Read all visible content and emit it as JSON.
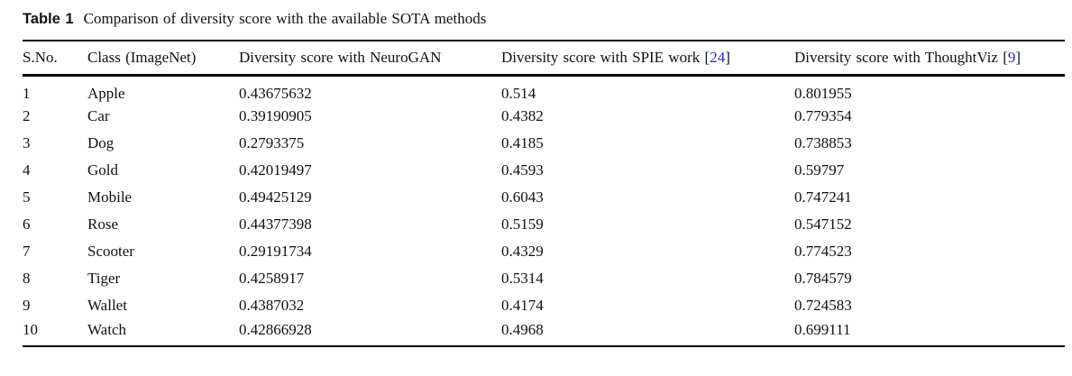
{
  "table": {
    "label": "Table 1",
    "caption": "Comparison of diversity score with the available SOTA methods",
    "columns": [
      {
        "label": "S.No."
      },
      {
        "label": "Class (ImageNet)"
      },
      {
        "label": "Diversity score with NeuroGAN"
      },
      {
        "label": "Diversity score with SPIE work",
        "cite_open": "[",
        "citation": "24",
        "cite_close": "]"
      },
      {
        "label": "Diversity score with ThoughtViz",
        "cite_open": "[",
        "citation": "9",
        "cite_close": "]"
      }
    ],
    "rows": [
      [
        "1",
        "Apple",
        "0.43675632",
        "0.514",
        "0.801955"
      ],
      [
        "2",
        "Car",
        "0.39190905",
        "0.4382",
        "0.779354"
      ],
      [
        "3",
        "Dog",
        "0.2793375",
        "0.4185",
        "0.738853"
      ],
      [
        "4",
        "Gold",
        "0.42019497",
        "0.4593",
        "0.59797"
      ],
      [
        "5",
        "Mobile",
        "0.49425129",
        "0.6043",
        "0.747241"
      ],
      [
        "6",
        "Rose",
        "0.44377398",
        "0.5159",
        "0.547152"
      ],
      [
        "7",
        "Scooter",
        "0.29191734",
        "0.4329",
        "0.774523"
      ],
      [
        "8",
        "Tiger",
        "0.4258917",
        "0.5314",
        "0.784579"
      ],
      [
        "9",
        "Wallet",
        "0.4387032",
        "0.4174",
        "0.724583"
      ],
      [
        "10",
        "Watch",
        "0.42866928",
        "0.4968",
        "0.699111"
      ]
    ],
    "colors": {
      "text": "#111111",
      "rule": "#000000",
      "citation": "#2a2ad8"
    }
  }
}
